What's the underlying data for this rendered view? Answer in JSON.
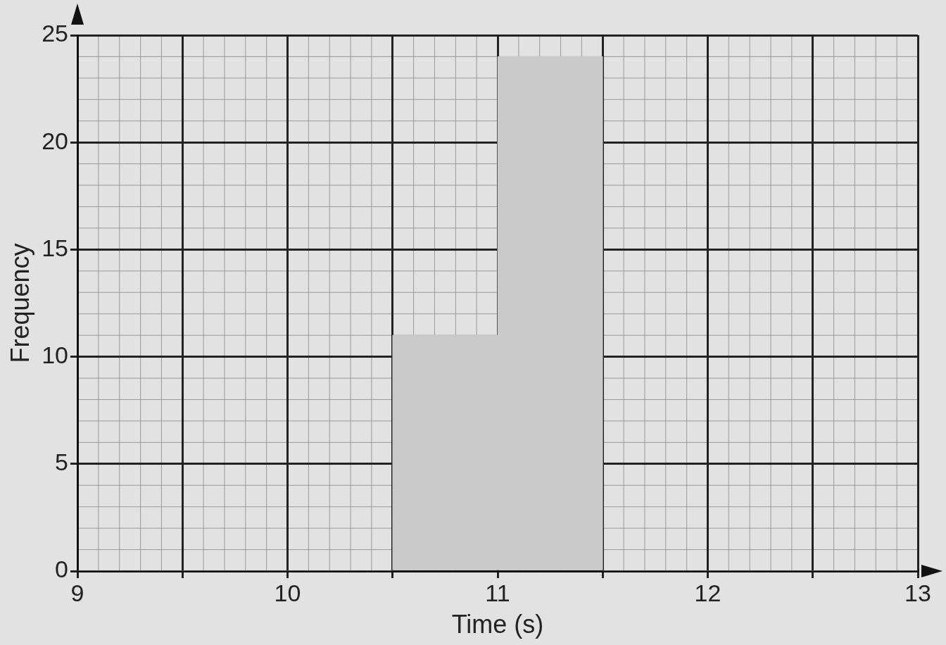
{
  "chart_data": {
    "type": "histogram",
    "xlabel": "Time (s)",
    "ylabel": "Frequency",
    "bins": [
      9,
      9.5,
      10,
      10.5,
      11,
      11.5,
      12,
      12.5,
      13
    ],
    "values": [
      0,
      0,
      0,
      11,
      24,
      0,
      0,
      0
    ],
    "color": "#c9c9c9",
    "xlim": [
      9,
      13
    ],
    "ylim": [
      0,
      25
    ],
    "xticks": [
      9,
      {
        "value": 9.5,
        "label": null
      },
      10,
      {
        "value": 10.5,
        "label": null
      },
      11,
      {
        "value": 11.5,
        "label": null
      },
      12,
      {
        "value": 12.5,
        "label": null
      },
      13
    ],
    "yticks": [
      0,
      5,
      10,
      15,
      20,
      25
    ],
    "grid": true,
    "legend": false
  }
}
